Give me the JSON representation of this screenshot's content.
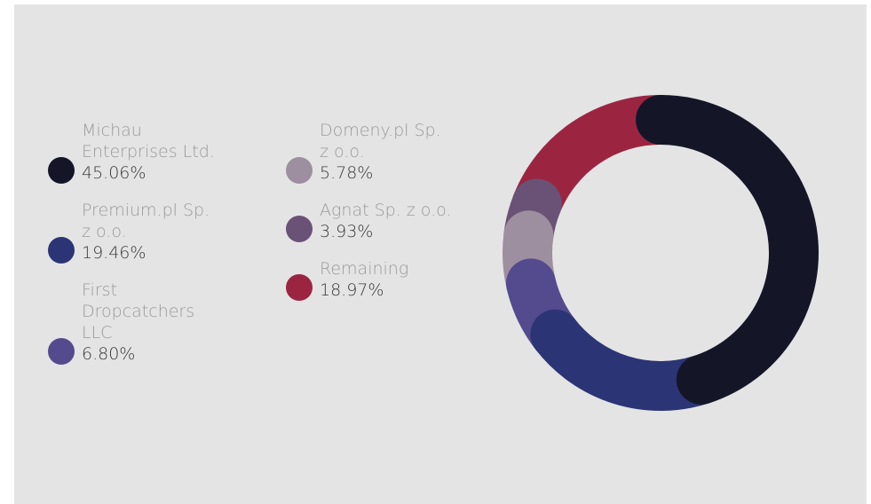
{
  "chart_data": {
    "type": "donut",
    "categories": [
      "Michau Enterprises Ltd.",
      "Premium.pl Sp. z o.o.",
      "First Dropcatchers LLC",
      "Domeny.pl Sp. z o.o.",
      "Agnat Sp. z o.o.",
      "Remaining"
    ],
    "values": [
      45.06,
      19.46,
      6.8,
      5.78,
      3.93,
      18.97
    ],
    "value_labels": [
      "45.06%",
      "19.46%",
      "6.80%",
      "5.78%",
      "3.93%",
      "18.97%"
    ],
    "colors": [
      "#141628",
      "#2b3575",
      "#544a8e",
      "#9d8f9f",
      "#6a5277",
      "#9b2541"
    ]
  }
}
